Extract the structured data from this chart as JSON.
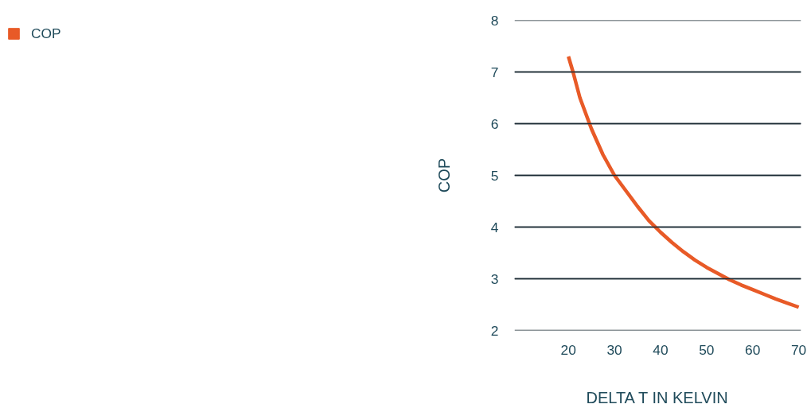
{
  "chart_data": {
    "type": "line",
    "xlabel": "DELTA T IN KELVIN",
    "ylabel": "COP",
    "x": [
      20,
      21,
      22.5,
      25,
      27.5,
      30,
      32.5,
      35,
      37.5,
      40,
      42.5,
      45,
      47.5,
      50,
      52.5,
      55,
      57.5,
      60,
      62.5,
      65,
      67.5,
      70
    ],
    "series": [
      {
        "name": "COP",
        "color": "#e85a27",
        "values": [
          7.3,
          7.0,
          6.5,
          5.9,
          5.4,
          5.0,
          4.7,
          4.4,
          4.12,
          3.9,
          3.7,
          3.52,
          3.36,
          3.22,
          3.1,
          2.98,
          2.88,
          2.79,
          2.7,
          2.61,
          2.53,
          2.45
        ]
      }
    ],
    "xlim": [
      8.3,
      70.5
    ],
    "xticks": [
      20,
      30,
      40,
      50,
      60,
      70
    ],
    "ylim": [
      2,
      8
    ],
    "yticks": [
      2,
      3,
      4,
      5,
      6,
      7,
      8
    ],
    "grid": "y",
    "legend": "top left",
    "marker": "none",
    "line_style": "solid"
  }
}
